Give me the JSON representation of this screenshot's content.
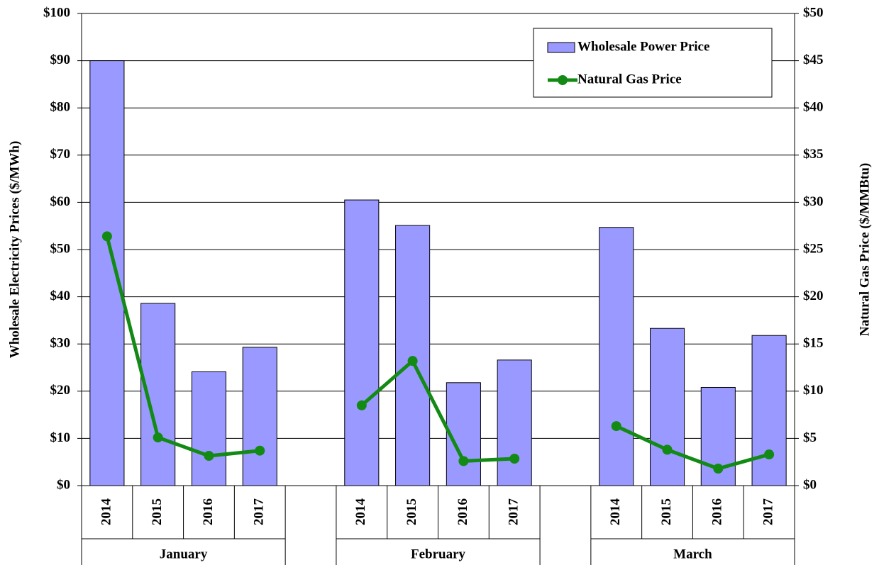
{
  "chart_data": {
    "type": "bar_line",
    "y_label": "Wholesale Electricity Prices ($/MWh)",
    "y2_label": "Natural Gas Price ($/MMBtu)",
    "groups": [
      "January",
      "February",
      "March"
    ],
    "categories": [
      "2014",
      "2015",
      "2016",
      "2017",
      "2014",
      "2015",
      "2016",
      "2017",
      "2014",
      "2015",
      "2016",
      "2017"
    ],
    "series": [
      {
        "name": "Wholesale Power Price",
        "type": "bar",
        "color": "#9999ff",
        "values": [
          90,
          38.6,
          24.1,
          29.3,
          60.5,
          55.1,
          21.8,
          26.6,
          54.7,
          33.3,
          20.8,
          31.8
        ]
      },
      {
        "name": "Natural Gas Price",
        "type": "line",
        "axis": "y2",
        "color": "#138a13",
        "values": [
          26.4,
          5.1,
          3.15,
          3.7,
          8.5,
          13.2,
          2.6,
          2.85,
          6.3,
          3.8,
          1.8,
          3.3
        ]
      }
    ],
    "ylim": [
      0,
      100
    ],
    "yticks": [
      {
        "value": 0,
        "label": "$0"
      },
      {
        "value": 10,
        "label": "$10"
      },
      {
        "value": 20,
        "label": "$20"
      },
      {
        "value": 30,
        "label": "$30"
      },
      {
        "value": 40,
        "label": "$40"
      },
      {
        "value": 50,
        "label": "$50"
      },
      {
        "value": 60,
        "label": "$60"
      },
      {
        "value": 70,
        "label": "$70"
      },
      {
        "value": 80,
        "label": "$80"
      },
      {
        "value": 90,
        "label": "$90"
      },
      {
        "value": 100,
        "label": "$100"
      }
    ],
    "y2lim": [
      0,
      50
    ],
    "y2ticks": [
      {
        "value": 0,
        "label": "$0"
      },
      {
        "value": 5,
        "label": "$5"
      },
      {
        "value": 10,
        "label": "$10"
      },
      {
        "value": 15,
        "label": "$15"
      },
      {
        "value": 20,
        "label": "$20"
      },
      {
        "value": 25,
        "label": "$25"
      },
      {
        "value": 30,
        "label": "$30"
      },
      {
        "value": 35,
        "label": "$35"
      },
      {
        "value": 40,
        "label": "$40"
      },
      {
        "value": 45,
        "label": "$45"
      },
      {
        "value": 50,
        "label": "$50"
      }
    ],
    "grid": true,
    "legend": "upper right"
  }
}
